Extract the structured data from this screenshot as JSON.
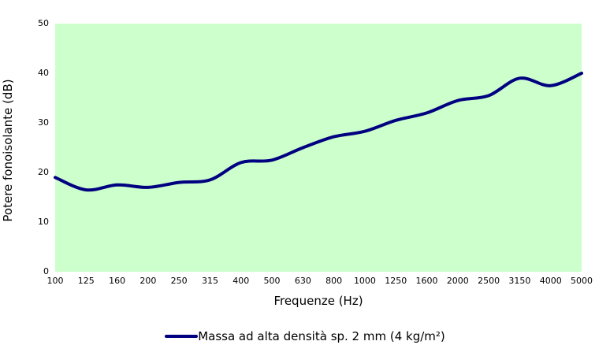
{
  "chart_data": {
    "type": "line",
    "title": "",
    "xlabel": "Frequenze (Hz)",
    "ylabel": "Potere fonoisolante (dB)",
    "categories": [
      "100",
      "125",
      "160",
      "200",
      "250",
      "315",
      "400",
      "500",
      "630",
      "800",
      "1000",
      "1250",
      "1600",
      "2000",
      "2500",
      "3150",
      "4000",
      "5000"
    ],
    "yticks": [
      0,
      10,
      20,
      30,
      40,
      50
    ],
    "ylim": [
      0,
      50
    ],
    "grid": false,
    "legend_position": "bottom",
    "plot_background": "#ccffcc",
    "page_background": "#ffffff",
    "series": [
      {
        "name": "Massa ad alta densità sp. 2 mm (4 kg/m²)",
        "color": "#000080",
        "values": [
          19,
          16.5,
          17.5,
          17,
          18,
          18.5,
          22,
          22.5,
          25,
          27.2,
          28.3,
          30.5,
          32,
          34.5,
          35.5,
          39,
          37.5,
          40
        ]
      }
    ]
  }
}
